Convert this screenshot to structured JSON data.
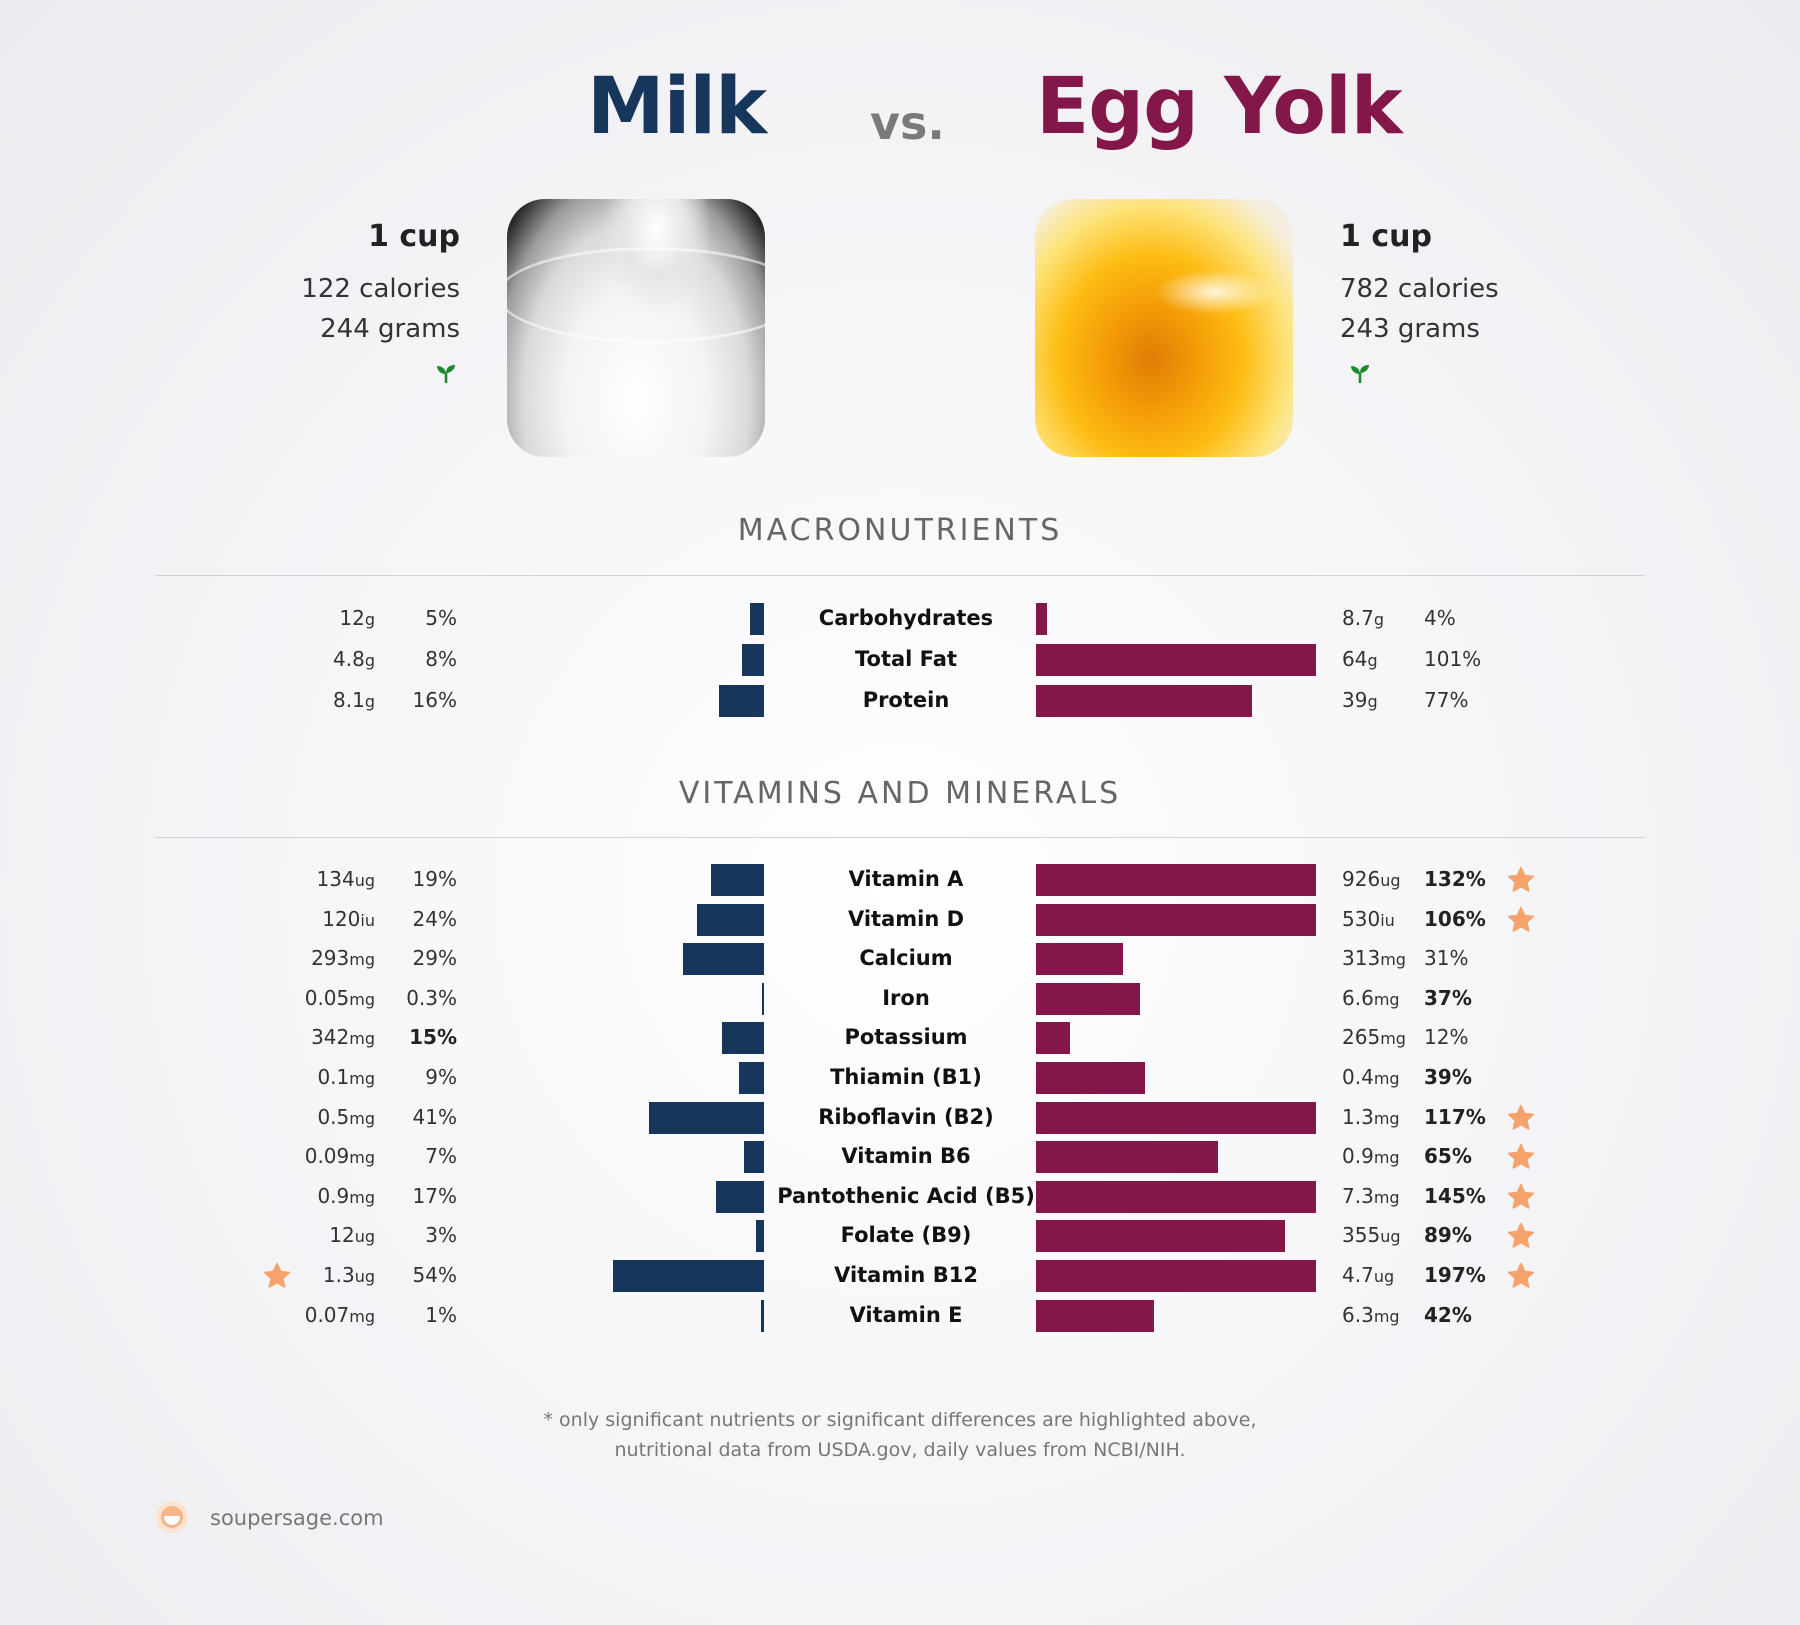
{
  "header": {
    "left_title": "Milk",
    "vs": "vs.",
    "right_title": "Egg Yolk"
  },
  "left_food": {
    "serving": "1 cup",
    "calories": "122 calories",
    "grams": "244 grams",
    "icon": "sprout-icon"
  },
  "right_food": {
    "serving": "1 cup",
    "calories": "782 calories",
    "grams": "243 grams",
    "icon": "sprout-icon"
  },
  "colors": {
    "left": "#17365c",
    "right": "#84174a",
    "star": "#f5a36b",
    "sprout": "#1e8a2e"
  },
  "sections": {
    "macro_title": "MACRONUTRIENTS",
    "vitamin_title": "VITAMINS AND MINERALS"
  },
  "chart_data": [
    {
      "type": "bar",
      "title": "MACRONUTRIENTS",
      "series_left": "Milk",
      "series_right": "Egg Yolk",
      "rows": [
        {
          "label": "Carbohydrates",
          "left_amount": "12",
          "left_unit": "g",
          "left_pct_label": "5%",
          "left_pct": 5,
          "left_bold": false,
          "left_star": false,
          "right_amount": "8.7",
          "right_unit": "g",
          "right_pct_label": "4%",
          "right_pct": 4,
          "right_bold": false,
          "right_star": false
        },
        {
          "label": "Total Fat",
          "left_amount": "4.8",
          "left_unit": "g",
          "left_pct_label": "8%",
          "left_pct": 8,
          "left_bold": false,
          "left_star": false,
          "right_amount": "64",
          "right_unit": "g",
          "right_pct_label": "101%",
          "right_pct": 101,
          "right_bold": false,
          "right_star": false
        },
        {
          "label": "Protein",
          "left_amount": "8.1",
          "left_unit": "g",
          "left_pct_label": "16%",
          "left_pct": 16,
          "left_bold": false,
          "left_star": false,
          "right_amount": "39",
          "right_unit": "g",
          "right_pct_label": "77%",
          "right_pct": 77,
          "right_bold": false,
          "right_star": false
        }
      ]
    },
    {
      "type": "bar",
      "title": "VITAMINS AND MINERALS",
      "series_left": "Milk",
      "series_right": "Egg Yolk",
      "rows": [
        {
          "label": "Vitamin A",
          "left_amount": "134",
          "left_unit": "ug",
          "left_pct_label": "19%",
          "left_pct": 19,
          "left_bold": false,
          "left_star": false,
          "right_amount": "926",
          "right_unit": "ug",
          "right_pct_label": "132%",
          "right_pct": 132,
          "right_bold": true,
          "right_star": true
        },
        {
          "label": "Vitamin D",
          "left_amount": "120",
          "left_unit": "iu",
          "left_pct_label": "24%",
          "left_pct": 24,
          "left_bold": false,
          "left_star": false,
          "right_amount": "530",
          "right_unit": "iu",
          "right_pct_label": "106%",
          "right_pct": 106,
          "right_bold": true,
          "right_star": true
        },
        {
          "label": "Calcium",
          "left_amount": "293",
          "left_unit": "mg",
          "left_pct_label": "29%",
          "left_pct": 29,
          "left_bold": false,
          "left_star": false,
          "right_amount": "313",
          "right_unit": "mg",
          "right_pct_label": "31%",
          "right_pct": 31,
          "right_bold": false,
          "right_star": false
        },
        {
          "label": "Iron",
          "left_amount": "0.05",
          "left_unit": "mg",
          "left_pct_label": "0.3%",
          "left_pct": 0.3,
          "left_bold": false,
          "left_star": false,
          "right_amount": "6.6",
          "right_unit": "mg",
          "right_pct_label": "37%",
          "right_pct": 37,
          "right_bold": true,
          "right_star": false
        },
        {
          "label": "Potassium",
          "left_amount": "342",
          "left_unit": "mg",
          "left_pct_label": "15%",
          "left_pct": 15,
          "left_bold": true,
          "left_star": false,
          "right_amount": "265",
          "right_unit": "mg",
          "right_pct_label": "12%",
          "right_pct": 12,
          "right_bold": false,
          "right_star": false
        },
        {
          "label": "Thiamin (B1)",
          "left_amount": "0.1",
          "left_unit": "mg",
          "left_pct_label": "9%",
          "left_pct": 9,
          "left_bold": false,
          "left_star": false,
          "right_amount": "0.4",
          "right_unit": "mg",
          "right_pct_label": "39%",
          "right_pct": 39,
          "right_bold": true,
          "right_star": false
        },
        {
          "label": "Riboflavin (B2)",
          "left_amount": "0.5",
          "left_unit": "mg",
          "left_pct_label": "41%",
          "left_pct": 41,
          "left_bold": false,
          "left_star": false,
          "right_amount": "1.3",
          "right_unit": "mg",
          "right_pct_label": "117%",
          "right_pct": 117,
          "right_bold": true,
          "right_star": true
        },
        {
          "label": "Vitamin B6",
          "left_amount": "0.09",
          "left_unit": "mg",
          "left_pct_label": "7%",
          "left_pct": 7,
          "left_bold": false,
          "left_star": false,
          "right_amount": "0.9",
          "right_unit": "mg",
          "right_pct_label": "65%",
          "right_pct": 65,
          "right_bold": true,
          "right_star": true
        },
        {
          "label": "Pantothenic Acid (B5)",
          "left_amount": "0.9",
          "left_unit": "mg",
          "left_pct_label": "17%",
          "left_pct": 17,
          "left_bold": false,
          "left_star": false,
          "right_amount": "7.3",
          "right_unit": "mg",
          "right_pct_label": "145%",
          "right_pct": 145,
          "right_bold": true,
          "right_star": true
        },
        {
          "label": "Folate (B9)",
          "left_amount": "12",
          "left_unit": "ug",
          "left_pct_label": "3%",
          "left_pct": 3,
          "left_bold": false,
          "left_star": false,
          "right_amount": "355",
          "right_unit": "ug",
          "right_pct_label": "89%",
          "right_pct": 89,
          "right_bold": true,
          "right_star": true
        },
        {
          "label": "Vitamin B12",
          "left_amount": "1.3",
          "left_unit": "ug",
          "left_pct_label": "54%",
          "left_pct": 54,
          "left_bold": false,
          "left_star": true,
          "right_amount": "4.7",
          "right_unit": "ug",
          "right_pct_label": "197%",
          "right_pct": 197,
          "right_bold": true,
          "right_star": true
        },
        {
          "label": "Vitamin E",
          "left_amount": "0.07",
          "left_unit": "mg",
          "left_pct_label": "1%",
          "left_pct": 1,
          "left_bold": false,
          "left_star": false,
          "right_amount": "6.3",
          "right_unit": "mg",
          "right_pct_label": "42%",
          "right_pct": 42,
          "right_bold": true,
          "right_star": false
        }
      ]
    }
  ],
  "footnote": {
    "line1": "* only significant nutrients or significant differences are highlighted above,",
    "line2": "nutritional data from USDA.gov, daily values from NCBI/NIH."
  },
  "brand": {
    "text": "soupersage.com",
    "icon": "soupersage-logo-icon"
  }
}
